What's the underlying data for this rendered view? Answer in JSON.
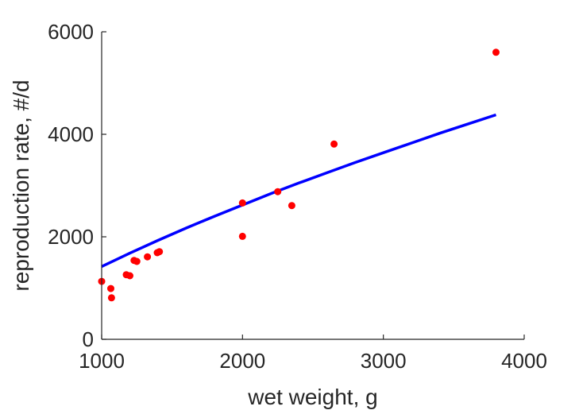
{
  "chart_data": {
    "type": "scatter",
    "title": "",
    "xlabel": "wet weight, g",
    "ylabel": "reproduction rate, #/d",
    "xlim": [
      1000,
      4000
    ],
    "ylim": [
      0,
      6000
    ],
    "xticks": [
      1000,
      2000,
      3000,
      4000
    ],
    "yticks": [
      0,
      2000,
      4000,
      6000
    ],
    "xtick_labels": [
      "1000",
      "2000",
      "3000",
      "4000"
    ],
    "ytick_labels": [
      "0",
      "2000",
      "4000",
      "6000"
    ],
    "grid": false,
    "legend": "none",
    "series": [
      {
        "kind": "points",
        "color": "#ff0000",
        "x": [
          1000,
          1065,
          1070,
          1175,
          1200,
          1230,
          1250,
          1325,
          1395,
          1410,
          2000,
          2000,
          2250,
          2350,
          2650,
          3800
        ],
        "y": [
          1130,
          990,
          810,
          1260,
          1240,
          1540,
          1520,
          1610,
          1690,
          1710,
          2660,
          2010,
          2880,
          2610,
          3810,
          5600
        ]
      },
      {
        "kind": "line",
        "color": "#0000ff",
        "x": [
          1000,
          1200,
          1400,
          1600,
          1800,
          2000,
          2200,
          2400,
          2600,
          2800,
          3000,
          3200,
          3400,
          3600,
          3800
        ],
        "y": [
          1420,
          1680,
          1930,
          2170,
          2400,
          2620,
          2840,
          3050,
          3250,
          3450,
          3640,
          3830,
          4020,
          4200,
          4380
        ]
      }
    ]
  }
}
